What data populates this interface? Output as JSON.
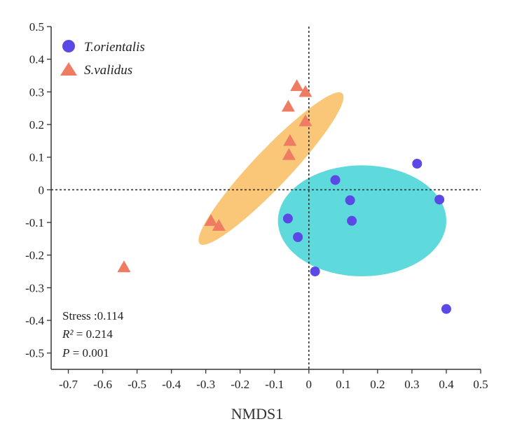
{
  "chart_data": {
    "type": "scatter",
    "xlabel": "NMDS1",
    "ylabel": "",
    "xlim": [
      -0.75,
      0.5
    ],
    "ylim": [
      -0.55,
      0.5
    ],
    "xticks": [
      "-0.7",
      "-0.6",
      "-0.5",
      "-0.4",
      "-0.3",
      "-0.2",
      "-0.1",
      "0",
      "0.1",
      "0.2",
      "0.3",
      "0.4",
      "0.5"
    ],
    "yticks": [
      "0.5",
      "0.4",
      "0.3",
      "0.2",
      "0.1",
      "0",
      "-0.1",
      "-0.2",
      "-0.3",
      "-0.4",
      "-0.5"
    ],
    "grid": false,
    "reference_lines": {
      "x": 0,
      "y": 0,
      "style": "dotted"
    },
    "legend_position": "top-left",
    "series": [
      {
        "name": "T.orientalis",
        "marker": "circle",
        "color": "#5b49e6",
        "ellipse_color": "#5ed9dc",
        "ellipse": {
          "cx": 0.155,
          "cy": -0.095,
          "rx": 0.245,
          "ry": 0.17,
          "angle_deg": 0
        },
        "x": [
          0.077,
          0.315,
          0.12,
          0.38,
          -0.061,
          0.125,
          -0.032,
          0.018,
          0.4
        ],
        "y": [
          0.03,
          0.08,
          -0.032,
          -0.03,
          -0.088,
          -0.095,
          -0.145,
          -0.25,
          -0.365
        ]
      },
      {
        "name": "S.validus",
        "marker": "triangle",
        "color": "#f07b63",
        "ellipse_color": "#f9c777",
        "ellipse": {
          "cx": -0.11,
          "cy": 0.065,
          "rx": 0.31,
          "ry": 0.055,
          "angle_deg": 48
        },
        "x": [
          -0.035,
          -0.01,
          -0.06,
          -0.01,
          -0.055,
          -0.058,
          -0.285,
          -0.262,
          -0.538
        ],
        "y": [
          0.318,
          0.3,
          0.255,
          0.21,
          0.15,
          0.107,
          -0.095,
          -0.11,
          -0.237
        ]
      }
    ],
    "annotations": {
      "stress": "Stress :0.114",
      "r2_label": "R²",
      "r2_value": " = 0.214",
      "p_label": "P",
      "p_value": " = 0.001"
    }
  }
}
